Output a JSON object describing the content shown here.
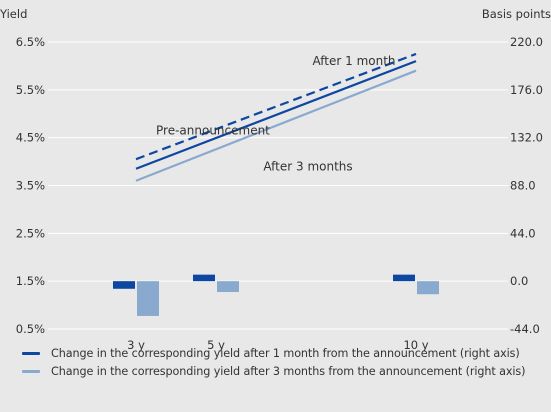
{
  "chart_data": {
    "type": "bar+line",
    "left_axis": {
      "title": "Yield",
      "ticks": [
        "6.5%",
        "5.5%",
        "4.5%",
        "3.5%",
        "2.5%",
        "1.5%",
        "0.5%"
      ],
      "tick_values": [
        6.5,
        5.5,
        4.5,
        3.5,
        2.5,
        1.5,
        0.5
      ],
      "ylim": [
        0.5,
        6.5
      ]
    },
    "right_axis": {
      "title": "Basis points",
      "ticks": [
        "220.0",
        "176.0",
        "132.0",
        "88.0",
        "44.0",
        "0.0",
        "-44.0"
      ],
      "tick_values": [
        220,
        176,
        132,
        88,
        44,
        0,
        -44
      ],
      "ylim": [
        -44,
        220
      ]
    },
    "categories": [
      "3 y",
      "5 y",
      "10 y"
    ],
    "category_positions": [
      3,
      5,
      10
    ],
    "xlim": [
      0.8,
      12.3
    ],
    "grid": true,
    "lines": [
      {
        "key": "dashed",
        "style": "dashed",
        "label": "",
        "x": [
          3,
          10
        ],
        "y": [
          4.05,
          6.25
        ]
      },
      {
        "key": "solid",
        "style": "solid",
        "label": "After 1 month",
        "x": [
          3,
          10
        ],
        "y": [
          3.85,
          6.1
        ]
      },
      {
        "key": "light",
        "style": "solid",
        "label": "After 3 months",
        "x": [
          3,
          10
        ],
        "y": [
          3.6,
          5.9
        ]
      }
    ],
    "annotations": {
      "pre_announcement": "Pre-announcement",
      "after_1_month": "After 1 month",
      "after_3_months": "After 3 months"
    },
    "bar_series": [
      {
        "name": "Change in the corresponding yield after 1 month from the announcement (right axis)",
        "color": "#0d47a1",
        "values": [
          -7,
          6,
          6
        ]
      },
      {
        "name": "Change in the corresponding yield after 3 months from the announcement (right axis)",
        "color": "#89a9cf",
        "values": [
          -32,
          -10,
          -12
        ]
      }
    ]
  },
  "colors": {
    "background": "#e8e8e8",
    "dark_blue": "#0d47a1",
    "light_blue": "#89a9cf",
    "grid": "#ffffff",
    "text": "#333333"
  }
}
